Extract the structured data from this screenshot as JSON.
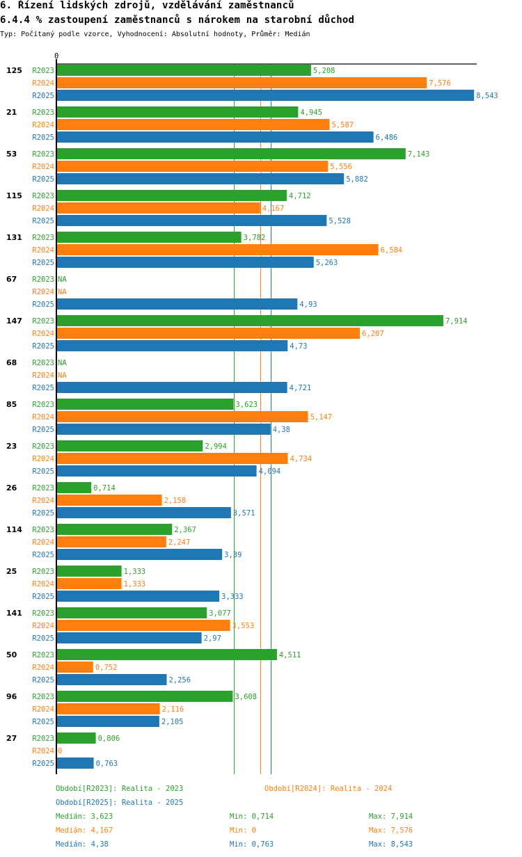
{
  "header": {
    "title": "6. Řízení lidských zdrojů, vzdělávání zaměstnanců",
    "subtitle": "6.4.4 % zastoupení zaměstnanců s nárokem na starobní důchod",
    "meta": "Typ: Počítaný podle vzorce, Vyhodnocení: Absolutní hodnoty, Průměr: Medián"
  },
  "chart_data": {
    "type": "bar",
    "orientation": "horizontal",
    "title": "6.4.4 % zastoupení zaměstnanců s nárokem na starobní důchod",
    "xlabel": "",
    "ylabel": "",
    "x_tick_labels": [
      "0"
    ],
    "xlim": [
      0,
      8.6
    ],
    "grid": false,
    "legend": "bottom",
    "categories": [
      "125",
      "21",
      "53",
      "115",
      "131",
      "67",
      "147",
      "68",
      "85",
      "23",
      "26",
      "114",
      "25",
      "141",
      "50",
      "96",
      "27"
    ],
    "series": [
      {
        "name": "R2023",
        "color": "#2ca02c",
        "values": [
          5.208,
          4.945,
          7.143,
          4.712,
          3.782,
          null,
          7.914,
          null,
          3.623,
          2.994,
          0.714,
          2.367,
          1.333,
          3.077,
          4.511,
          3.608,
          0.806
        ],
        "labels": [
          "5,208",
          "4,945",
          "7,143",
          "4,712",
          "3,782",
          "NA",
          "7,914",
          "NA",
          "3,623",
          "2,994",
          "0,714",
          "2,367",
          "1,333",
          "3,077",
          "4,511",
          "3,608",
          "0,806"
        ]
      },
      {
        "name": "R2024",
        "color": "#ff7f0e",
        "values": [
          7.576,
          5.587,
          5.556,
          4.167,
          6.584,
          null,
          6.207,
          null,
          5.147,
          4.734,
          2.158,
          2.247,
          1.333,
          3.553,
          0.752,
          2.116,
          0
        ],
        "labels": [
          "7,576",
          "5,587",
          "5,556",
          "4,167",
          "6,584",
          "NA",
          "6,207",
          "NA",
          "5,147",
          "4,734",
          "2,158",
          "2,247",
          "1,333",
          "3,553",
          "0,752",
          "2,116",
          "0"
        ]
      },
      {
        "name": "R2025",
        "color": "#1f77b4",
        "values": [
          8.543,
          6.486,
          5.882,
          5.528,
          5.263,
          4.93,
          4.73,
          4.721,
          4.38,
          4.094,
          3.571,
          3.39,
          3.333,
          2.97,
          2.256,
          2.105,
          0.763
        ],
        "labels": [
          "8,543",
          "6,486",
          "5,882",
          "5,528",
          "5,263",
          "4,93",
          "4,73",
          "4,721",
          "4,38",
          "4,094",
          "3,571",
          "3,39",
          "3,333",
          "2,97",
          "2,256",
          "2,105",
          "0,763"
        ]
      }
    ],
    "median_lines": [
      {
        "series": "R2023",
        "value": 3.623
      },
      {
        "series": "R2024",
        "value": 4.167
      },
      {
        "series": "R2025",
        "value": 4.38
      }
    ]
  },
  "legend": {
    "r2023": "Období[R2023]: Realita - 2023",
    "r2024": "Období[R2024]: Realita - 2024",
    "r2025": "Období[R2025]: Realita - 2025"
  },
  "stats": [
    {
      "median": "Medián: 3,623",
      "min": "Min: 0,714",
      "max": "Max: 7,914",
      "color": "#2ca02c"
    },
    {
      "median": "Medián: 4,167",
      "min": "Min: 0",
      "max": "Max: 7,576",
      "color": "#ff7f0e"
    },
    {
      "median": "Medián: 4,38",
      "min": "Min: 0,763",
      "max": "Max: 8,543",
      "color": "#1f77b4"
    }
  ]
}
